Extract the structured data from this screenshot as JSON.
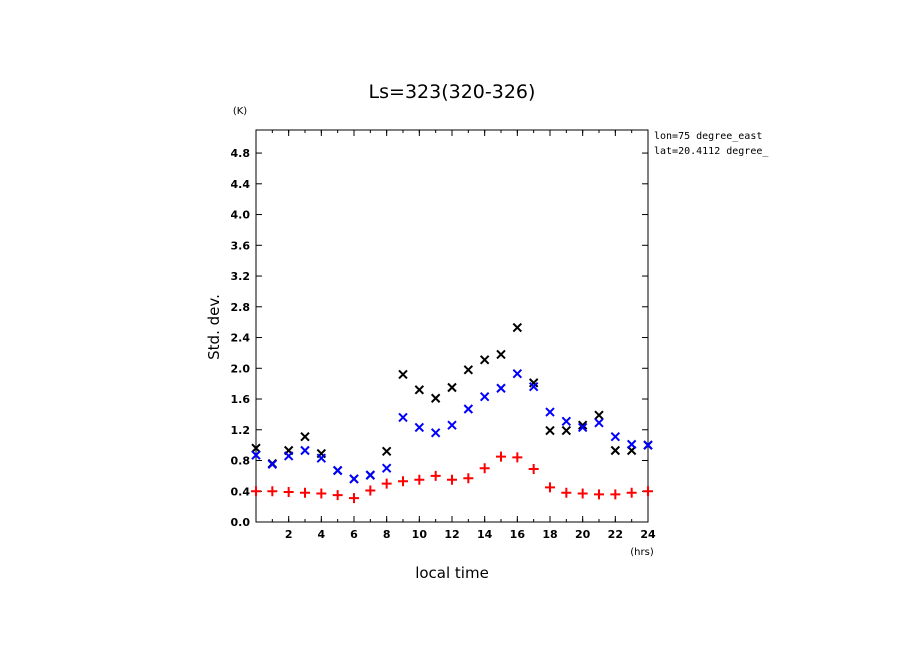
{
  "chart_data": {
    "type": "scatter",
    "title": "Ls=323(320-326)",
    "xlabel": "local time",
    "ylabel": "Std. dev.",
    "x_unit": "(hrs)",
    "y_unit": "(K)",
    "xlim": [
      0,
      24
    ],
    "ylim": [
      0.0,
      5.1
    ],
    "x_ticks": [
      2,
      4,
      6,
      8,
      10,
      12,
      14,
      16,
      18,
      20,
      22,
      24
    ],
    "x_tick_labels": [
      "2",
      "4",
      "6",
      "8",
      "10",
      "12",
      "14",
      "16",
      "18",
      "20",
      "22",
      "24"
    ],
    "y_ticks": [
      0.0,
      0.4,
      0.8,
      1.2,
      1.6,
      2.0,
      2.4,
      2.8,
      3.2,
      3.6,
      4.0,
      4.4,
      4.8
    ],
    "y_tick_labels": [
      "0.0",
      "0.4",
      "0.8",
      "1.2",
      "1.6",
      "2.0",
      "2.4",
      "2.8",
      "3.2",
      "3.6",
      "4.0",
      "4.4",
      "4.8"
    ],
    "annotations": [
      "lon=75 degree_east",
      "lat=20.4112 degree_"
    ],
    "grid": false,
    "series": [
      {
        "marker": "x",
        "color": "#000000",
        "x": [
          0,
          1,
          2,
          3,
          4,
          5,
          6,
          7,
          8,
          9,
          10,
          11,
          12,
          13,
          14,
          15,
          16,
          17,
          18,
          19,
          20,
          21,
          22,
          23,
          24
        ],
        "y": [
          0.96,
          0.76,
          0.93,
          1.11,
          0.89,
          0.67,
          0.56,
          0.61,
          0.92,
          1.92,
          1.72,
          1.61,
          1.75,
          1.98,
          2.11,
          2.18,
          2.53,
          1.81,
          1.19,
          1.19,
          1.26,
          1.39,
          0.93,
          0.93,
          1.0
        ]
      },
      {
        "marker": "x",
        "color": "#0000ff",
        "x": [
          0,
          1,
          2,
          3,
          4,
          5,
          6,
          7,
          8,
          9,
          10,
          11,
          12,
          13,
          14,
          15,
          16,
          17,
          18,
          19,
          20,
          21,
          22,
          23,
          24
        ],
        "y": [
          0.87,
          0.75,
          0.86,
          0.93,
          0.83,
          0.67,
          0.56,
          0.61,
          0.7,
          1.36,
          1.23,
          1.16,
          1.26,
          1.47,
          1.63,
          1.74,
          1.93,
          1.76,
          1.43,
          1.31,
          1.23,
          1.29,
          1.11,
          1.01,
          1.0
        ]
      },
      {
        "marker": "+",
        "color": "#ff0000",
        "x": [
          0,
          1,
          2,
          3,
          4,
          5,
          6,
          7,
          8,
          9,
          10,
          11,
          12,
          13,
          14,
          15,
          16,
          17,
          18,
          19,
          20,
          21,
          22,
          23,
          24
        ],
        "y": [
          0.4,
          0.4,
          0.39,
          0.38,
          0.37,
          0.35,
          0.31,
          0.41,
          0.5,
          0.53,
          0.55,
          0.6,
          0.55,
          0.57,
          0.7,
          0.85,
          0.84,
          0.69,
          0.45,
          0.38,
          0.37,
          0.36,
          0.36,
          0.38,
          0.4
        ]
      }
    ]
  }
}
